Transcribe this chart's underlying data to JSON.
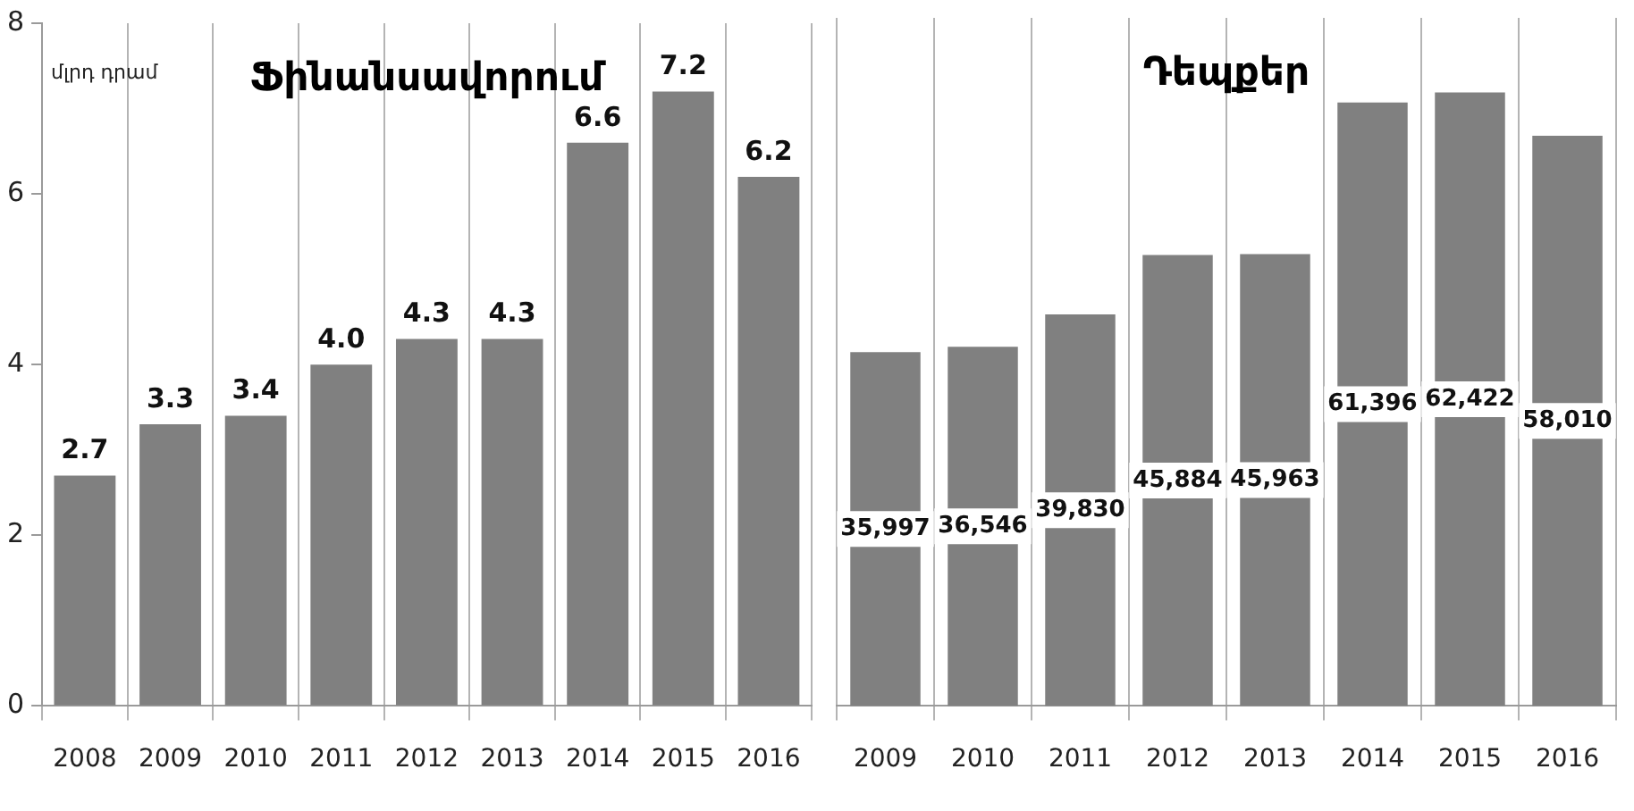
{
  "chart_data": [
    {
      "type": "bar",
      "title": "Ֆինանսավորում",
      "ylabel": "մլրդ դրամ",
      "categories": [
        "2008",
        "2009",
        "2010",
        "2011",
        "2012",
        "2013",
        "2014",
        "2015",
        "2016"
      ],
      "values": [
        2.7,
        3.3,
        3.4,
        4.0,
        4.3,
        4.3,
        6.6,
        7.2,
        6.2
      ],
      "value_labels": [
        "2.7",
        "3.3",
        "3.4",
        "4.0",
        "4.3",
        "4.3",
        "6.6",
        "7.2",
        "6.2"
      ],
      "color": "#808080",
      "ylim": [
        0,
        8
      ],
      "yticks": [
        0,
        2,
        4,
        6,
        8
      ],
      "grid": "x"
    },
    {
      "type": "bar",
      "title": "Դեպքեր",
      "categories": [
        "2009",
        "2010",
        "2011",
        "2012",
        "2013",
        "2014",
        "2015",
        "2016"
      ],
      "values": [
        35997,
        36546,
        39830,
        45884,
        45963,
        61396,
        62422,
        58010
      ],
      "value_labels": [
        "35,997",
        "36,546",
        "39,830",
        "45,884",
        "45,963",
        "61,396",
        "62,422",
        "58,010"
      ],
      "color": "#808080",
      "grid": "x",
      "tick_labels": "x"
    }
  ]
}
